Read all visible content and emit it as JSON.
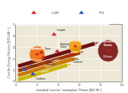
{
  "chart_data": {
    "type": "scatter",
    "xlabel": "Installed Cost for \"nameplate\" Power [$/D W⁻¹]",
    "ylabel": "Cost for Energy Returns [$/D kWh⁻¹]",
    "xlim": [
      0,
      10
    ],
    "ylim": [
      0,
      5
    ],
    "xticks": [
      0,
      2,
      4,
      6,
      8,
      10
    ],
    "yticks": [
      0,
      1,
      2,
      3,
      4,
      5
    ],
    "grid": true,
    "legend": "upper left",
    "series": [
      {
        "name": "CSP",
        "color": "#cc2020",
        "marker": "triangle-up",
        "labels": [
          "Ivanpah",
          "Topaz",
          "Desert\nSunlight",
          "Antelope\nValley",
          "Heron\nCabazon"
        ],
        "x": [
          3.6,
          2.4,
          2.6,
          3.9,
          5.1
        ],
        "y": [
          4.15,
          2.55,
          2.1,
          2.65,
          2.35
        ],
        "label_dx": [
          0.1,
          0.1,
          0.1,
          0.1,
          0.1
        ],
        "label_dy": [
          0.08,
          0.05,
          -0.1,
          0.05,
          -0.1
        ]
      },
      {
        "name": "PV",
        "color": "#2050c0",
        "marker": "triangle-up",
        "labels": [
          "Lakehurst",
          "Chaflores"
        ],
        "x": [
          0.8,
          1.6
        ],
        "y": [
          1.05,
          0.65
        ],
        "label_dx": [
          0.1,
          0.1
        ],
        "label_dy": [
          0.05,
          -0.12
        ]
      }
    ],
    "circles": [
      {
        "name": "Andasol",
        "hours": "2.5 hours",
        "x": 2.0,
        "y": 2.4,
        "radius": 0.72,
        "color": "#f07010"
      },
      {
        "name": "Solana",
        "hours": "6 hours",
        "x": 5.6,
        "y": 3.1,
        "radius": 0.6,
        "color": "#f0a010"
      },
      {
        "name": "Crescent\nDunes",
        "hours": "10 hours",
        "x": 8.7,
        "y": 2.7,
        "radius": 0.95,
        "color": "#7a1515"
      }
    ],
    "arrows": [
      {
        "label": "2 hours",
        "x0": 0.2,
        "y0": 0.15,
        "dx": 5.2,
        "dy": 1.45,
        "color": "#c8b400",
        "label_x": 2.3,
        "label_y": 0.5
      },
      {
        "label": "3 hours",
        "x0": 0.2,
        "y0": 0.55,
        "dx": 5.8,
        "dy": 1.6,
        "color": "#c87800",
        "label_x": 2.8,
        "label_y": 0.95
      },
      {
        "label": "4 hours",
        "x0": 0.2,
        "y0": 0.95,
        "dx": 6.4,
        "dy": 1.75,
        "color": "#a03808",
        "label_x": 3.2,
        "label_y": 1.4
      },
      {
        "label": "6 hours",
        "x0": 0.2,
        "y0": 1.35,
        "dx": 7.8,
        "dy": 2.15,
        "color": "#6b1010",
        "label_x": 3.8,
        "label_y": 1.85
      }
    ]
  }
}
